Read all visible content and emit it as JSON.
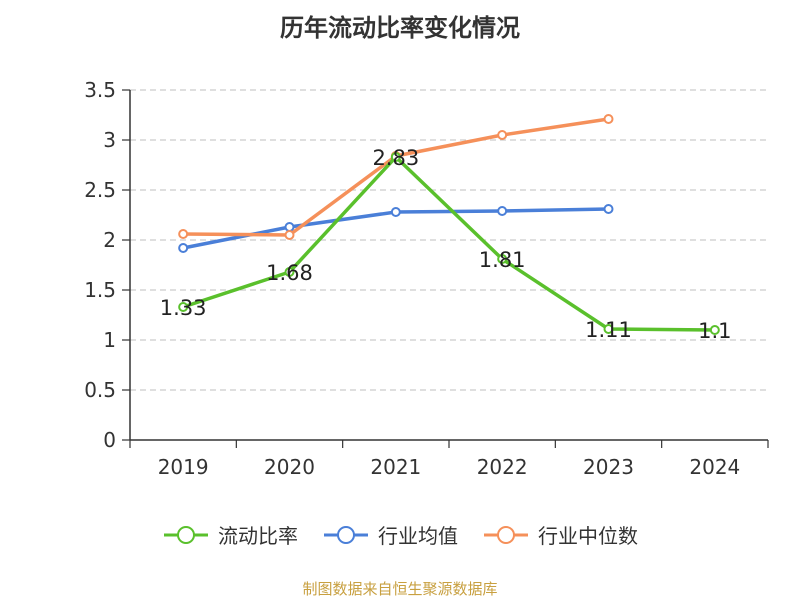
{
  "chart_data": {
    "type": "line",
    "title": "历年流动比率变化情况",
    "categories": [
      "2019",
      "2020",
      "2021",
      "2022",
      "2023",
      "2024"
    ],
    "ylim": [
      0,
      3.5
    ],
    "yticks": [
      "0",
      "0.5",
      "1",
      "1.5",
      "2",
      "2.5",
      "3",
      "3.5"
    ],
    "grid": true,
    "legend_position": "bottom",
    "series": [
      {
        "name": "流动比率",
        "color": "#5ac02c",
        "values": [
          1.33,
          1.68,
          2.83,
          1.81,
          1.11,
          1.1
        ],
        "labels": [
          "1.33",
          "1.68",
          "2.83",
          "1.81",
          "1.11",
          "1.1"
        ]
      },
      {
        "name": "行业均值",
        "color": "#4a7fd8",
        "values": [
          1.92,
          2.13,
          2.28,
          2.29,
          2.31,
          null
        ]
      },
      {
        "name": "行业中位数",
        "color": "#f5905a",
        "values": [
          2.06,
          2.05,
          2.84,
          3.05,
          3.21,
          null
        ]
      }
    ]
  },
  "source_note": "制图数据来自恒生聚源数据库"
}
